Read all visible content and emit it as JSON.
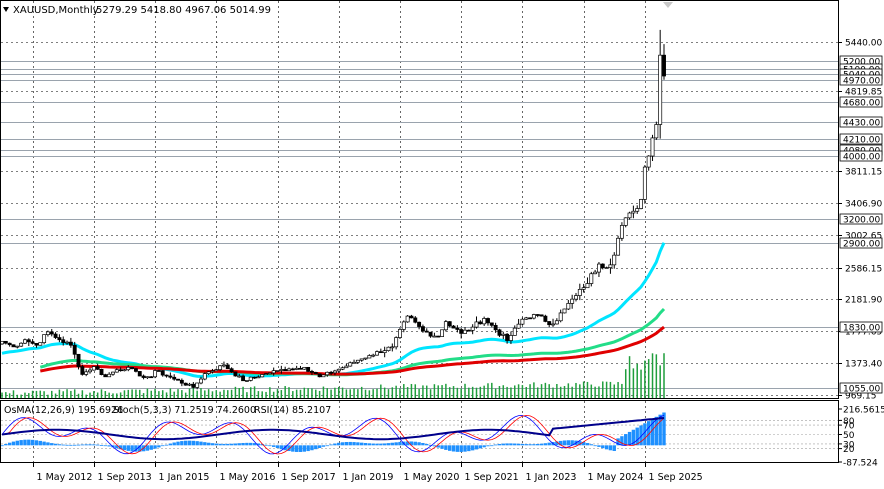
{
  "header": {
    "symbol": "XAUUSD,Monthly",
    "ohlc": "5279.29 5418.80 4967.06 5014.99"
  },
  "indicator_header": {
    "osma": "OsMA(12,26,9) 195.6926",
    "stoch": "Stoch(5,3,3) 71.2519 74.2600",
    "rsi": "RSI(14) 85.2107"
  },
  "colors": {
    "background": "#ffffff",
    "grid": "#000000",
    "candle_up": "#000000",
    "candle_down": "#000000",
    "ema_fast": "#00e5ff",
    "ema_mid": "#22dd88",
    "ema_slow": "#e00000",
    "volume": "#1f9e3c",
    "osma": "#1e90ff",
    "rsi": "#00008b",
    "stoch_main": "#0000ff",
    "stoch_signal": "#ff0000",
    "level_line": "#9aa3ad",
    "price_tag_bg": "#ffffff"
  },
  "chart_data": {
    "type": "candlestick",
    "symbol": "XAUUSD",
    "timeframe": "Monthly",
    "x_range": [
      "2011-09",
      "2026-02"
    ],
    "y_range": [
      969.15,
      5700
    ],
    "price_ticks": [
      "5440.00",
      "4819.85",
      "3811.15",
      "3406.90",
      "3002.65",
      "2586.15",
      "2181.90",
      "1777.65",
      "1373.40",
      "969.15"
    ],
    "horizontal_levels": [
      {
        "price": 5200,
        "label": "5200.00"
      },
      {
        "price": 5100,
        "label": "5100.00"
      },
      {
        "price": 5040,
        "label": "5040.00"
      },
      {
        "price": 4970,
        "label": "4970.00"
      },
      {
        "price": 4680,
        "label": "4680.00"
      },
      {
        "price": 4430,
        "label": "4430.00"
      },
      {
        "price": 4210,
        "label": "4210.00"
      },
      {
        "price": 4080,
        "label": "4080.00"
      },
      {
        "price": 4000,
        "label": "4000.00"
      },
      {
        "price": 3200,
        "label": "3200.00"
      },
      {
        "price": 2900,
        "label": "2900.00"
      },
      {
        "price": 1830,
        "label": "1830.00"
      },
      {
        "price": 1055,
        "label": "1055.00"
      }
    ],
    "x_labels": [
      "1 May 2012",
      "1 Sep 2013",
      "1 Jan 2015",
      "1 May 2016",
      "1 Sep 2017",
      "1 Jan 2019",
      "1 May 2020",
      "1 Sep 2021",
      "1 Jan 2023",
      "1 May 2024",
      "1 Sep 2025"
    ],
    "close_anchors": [
      [
        "2011-09",
        1650
      ],
      [
        "2011-12",
        1580
      ],
      [
        "2012-03",
        1670
      ],
      [
        "2012-06",
        1600
      ],
      [
        "2012-09",
        1770
      ],
      [
        "2012-12",
        1670
      ],
      [
        "2013-03",
        1600
      ],
      [
        "2013-06",
        1230
      ],
      [
        "2013-09",
        1330
      ],
      [
        "2013-12",
        1200
      ],
      [
        "2014-03",
        1290
      ],
      [
        "2014-06",
        1320
      ],
      [
        "2014-09",
        1210
      ],
      [
        "2014-12",
        1200
      ],
      [
        "2015-01",
        1280
      ],
      [
        "2015-06",
        1170
      ],
      [
        "2015-11",
        1065
      ],
      [
        "2016-02",
        1240
      ],
      [
        "2016-07",
        1350
      ],
      [
        "2016-12",
        1150
      ],
      [
        "2017-06",
        1240
      ],
      [
        "2017-09",
        1280
      ],
      [
        "2017-12",
        1300
      ],
      [
        "2018-04",
        1320
      ],
      [
        "2018-08",
        1200
      ],
      [
        "2019-02",
        1315
      ],
      [
        "2019-06",
        1410
      ],
      [
        "2019-09",
        1470
      ],
      [
        "2020-03",
        1580
      ],
      [
        "2020-07",
        1970
      ],
      [
        "2020-11",
        1780
      ],
      [
        "2021-03",
        1710
      ],
      [
        "2021-05",
        1900
      ],
      [
        "2021-09",
        1750
      ],
      [
        "2021-12",
        1830
      ],
      [
        "2022-03",
        1940
      ],
      [
        "2022-09",
        1660
      ],
      [
        "2023-01",
        1930
      ],
      [
        "2023-04",
        1990
      ],
      [
        "2023-09",
        1870
      ],
      [
        "2023-12",
        2060
      ],
      [
        "2024-03",
        2230
      ],
      [
        "2024-05",
        2330
      ],
      [
        "2024-09",
        2630
      ],
      [
        "2024-12",
        2620
      ],
      [
        "2025-03",
        3120
      ],
      [
        "2025-06",
        3300
      ],
      [
        "2025-08",
        3450
      ],
      [
        "2025-09",
        3860
      ],
      [
        "2025-10",
        4000
      ],
      [
        "2025-11",
        4230
      ],
      [
        "2025-12",
        4400
      ],
      [
        "2026-01",
        5279.29
      ],
      [
        "2026-02",
        5014.99
      ]
    ],
    "last_bar": {
      "open": 5279.29,
      "high": 5418.8,
      "low": 4967.06,
      "close": 5014.99
    },
    "moving_averages": [
      {
        "color_key": "ema_fast",
        "end_value": 2900,
        "period_guess": 24
      },
      {
        "color_key": "ema_mid",
        "end_value": 2060,
        "period_guess": 60
      },
      {
        "color_key": "ema_slow",
        "end_value": 1830,
        "period_guess": 100
      }
    ],
    "oscillator": {
      "ticks": [
        "216.5615",
        "80",
        "70",
        "50",
        "30",
        "20",
        "-87.524"
      ],
      "osma_last": 195.6926,
      "stoch_main_last": 71.2519,
      "stoch_signal_last": 74.26,
      "rsi_last": 85.2107
    }
  }
}
